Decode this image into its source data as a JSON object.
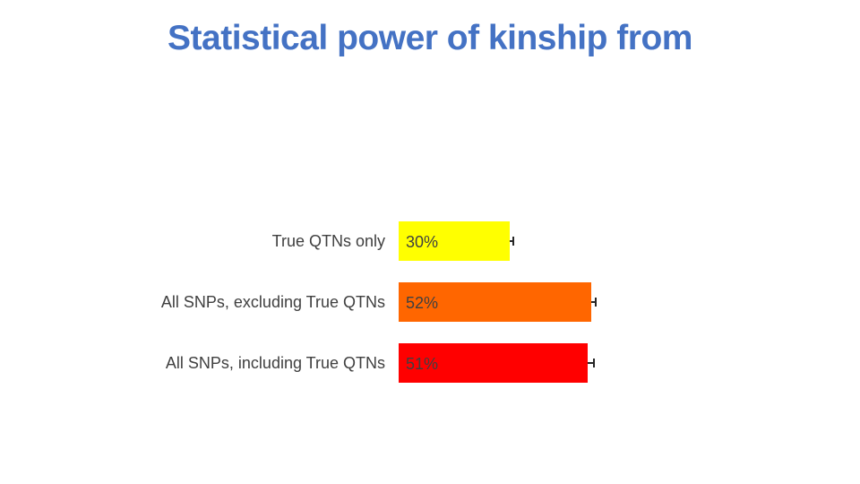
{
  "slide": {
    "background_color": "#ffffff"
  },
  "chart_data": {
    "type": "bar",
    "orientation": "horizontal",
    "title": "Statistical power of kinship from",
    "title_color": "#4472c4",
    "text_color": "#404040",
    "categories": [
      "True QTNs only",
      "All SNPs, excluding True QTNs",
      "All SNPs, including True QTNs"
    ],
    "values": [
      30,
      52,
      51
    ],
    "value_labels": [
      "30%",
      "52%",
      "51%"
    ],
    "colors": [
      "#ffff00",
      "#ff6600",
      "#ff0000"
    ],
    "errors_pct": [
      0.7,
      1.0,
      1.5
    ],
    "error_bar_color": "#262626",
    "xlim": [
      0,
      100
    ],
    "axes_visible": false,
    "gridlines": false,
    "legend": "none",
    "data_labels_position": "inside-start"
  }
}
